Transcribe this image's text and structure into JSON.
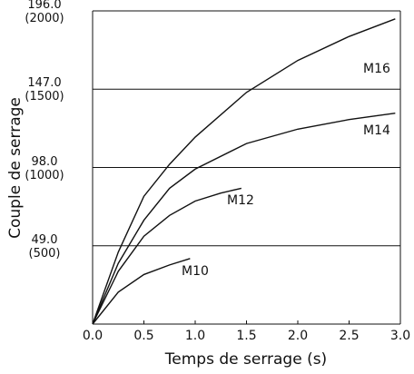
{
  "chart_data": {
    "type": "line",
    "x_label": "Temps de serrage (s)",
    "y_label": "Couple de serrage",
    "xlim": [
      0,
      3
    ],
    "ylim": [
      0,
      196
    ],
    "xticks": [
      {
        "value": 0,
        "label": "0.0"
      },
      {
        "value": 0.5,
        "label": "0.5"
      },
      {
        "value": 1,
        "label": "1.0"
      },
      {
        "value": 1.5,
        "label": "1.5"
      },
      {
        "value": 2,
        "label": "2.0"
      },
      {
        "value": 2.5,
        "label": "2.5"
      },
      {
        "value": 3,
        "label": "3.0"
      }
    ],
    "yticks": [
      {
        "value": 49,
        "label": "49.0\n(500)"
      },
      {
        "value": 98,
        "label": "98.0\n(1000)"
      },
      {
        "value": 147,
        "label": "147.0\n(1500)"
      },
      {
        "value": 196,
        "label": "196.0\n(2000)"
      }
    ],
    "grid": true,
    "series": [
      {
        "name": "M16",
        "color": "#111111",
        "x": [
          0,
          0.25,
          0.5,
          0.75,
          1.0,
          1.5,
          2.0,
          2.5,
          2.95
        ],
        "values": [
          0,
          45,
          80,
          100,
          117,
          145,
          165,
          180,
          191
        ]
      },
      {
        "name": "M14",
        "color": "#111111",
        "x": [
          0,
          0.25,
          0.5,
          0.75,
          1.0,
          1.5,
          2.0,
          2.5,
          2.95
        ],
        "values": [
          0,
          38,
          65,
          85,
          97,
          113,
          122,
          128,
          132
        ]
      },
      {
        "name": "M12",
        "color": "#111111",
        "x": [
          0,
          0.25,
          0.5,
          0.75,
          1.0,
          1.25,
          1.45
        ],
        "values": [
          0,
          33,
          55,
          68,
          77,
          82,
          85
        ]
      },
      {
        "name": "M10",
        "color": "#111111",
        "x": [
          0,
          0.25,
          0.5,
          0.75,
          0.95
        ],
        "values": [
          0,
          20,
          31,
          37,
          41
        ]
      }
    ]
  }
}
